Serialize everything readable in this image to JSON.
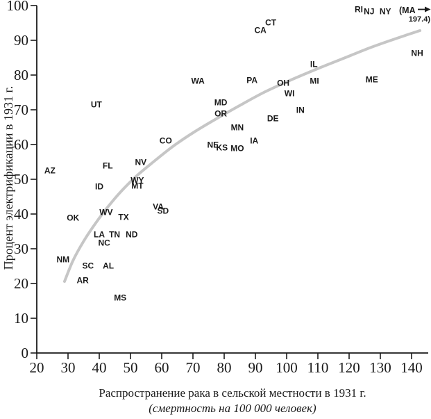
{
  "chart_data": {
    "type": "scatter",
    "title": "",
    "xlabel": "Распространение рака в сельской местности в 1931 г.",
    "xlabel_note": "(смертность на 100 000 человек)",
    "ylabel": "Процент электрификации в 1931 г.",
    "xlim": [
      20,
      145
    ],
    "ylim": [
      0,
      100
    ],
    "grid": false,
    "legend": "none",
    "point_marker": "state-abbreviation-text",
    "x_ticks": [
      20,
      30,
      40,
      50,
      60,
      70,
      80,
      90,
      100,
      110,
      120,
      130,
      140
    ],
    "y_ticks": [
      0,
      10,
      20,
      30,
      40,
      50,
      60,
      70,
      80,
      90,
      100
    ],
    "points": [
      {
        "label": "AZ",
        "x": 24.2,
        "y": 52.6
      },
      {
        "label": "NM",
        "x": 28.4,
        "y": 27.0
      },
      {
        "label": "OK",
        "x": 31.6,
        "y": 39.0
      },
      {
        "label": "AR",
        "x": 34.7,
        "y": 21.0
      },
      {
        "label": "SC",
        "x": 36.4,
        "y": 25.2
      },
      {
        "label": "UT",
        "x": 39.1,
        "y": 71.6
      },
      {
        "label": "ID",
        "x": 40.0,
        "y": 48.0
      },
      {
        "label": "LA",
        "x": 40.0,
        "y": 34.2
      },
      {
        "label": "NC",
        "x": 41.6,
        "y": 31.8
      },
      {
        "label": "WV",
        "x": 42.2,
        "y": 40.6
      },
      {
        "label": "FL",
        "x": 42.7,
        "y": 54.0
      },
      {
        "label": "AL",
        "x": 42.9,
        "y": 25.2
      },
      {
        "label": "TN",
        "x": 44.9,
        "y": 34.2
      },
      {
        "label": "MS",
        "x": 46.7,
        "y": 16.0
      },
      {
        "label": "TX",
        "x": 47.8,
        "y": 39.2
      },
      {
        "label": "ND",
        "x": 50.4,
        "y": 34.2
      },
      {
        "label": "WY",
        "x": 52.2,
        "y": 49.8
      },
      {
        "label": "MT",
        "x": 52.2,
        "y": 48.2
      },
      {
        "label": "NV",
        "x": 53.3,
        "y": 55.0
      },
      {
        "label": "VA",
        "x": 58.9,
        "y": 42.2
      },
      {
        "label": "SD",
        "x": 60.4,
        "y": 41.0
      },
      {
        "label": "CO",
        "x": 61.3,
        "y": 61.2
      },
      {
        "label": "WA",
        "x": 71.6,
        "y": 78.4
      },
      {
        "label": "NE",
        "x": 76.4,
        "y": 60.0
      },
      {
        "label": "OR",
        "x": 78.9,
        "y": 69.0
      },
      {
        "label": "MD",
        "x": 78.9,
        "y": 72.2
      },
      {
        "label": "KS",
        "x": 79.3,
        "y": 59.2
      },
      {
        "label": "MN",
        "x": 84.2,
        "y": 65.0
      },
      {
        "label": "MO",
        "x": 84.2,
        "y": 59.0
      },
      {
        "label": "PA",
        "x": 88.9,
        "y": 78.6
      },
      {
        "label": "IA",
        "x": 89.6,
        "y": 61.2
      },
      {
        "label": "CA",
        "x": 91.6,
        "y": 93.0
      },
      {
        "label": "CT",
        "x": 94.9,
        "y": 95.2
      },
      {
        "label": "DE",
        "x": 95.6,
        "y": 67.6
      },
      {
        "label": "OH",
        "x": 98.9,
        "y": 77.8
      },
      {
        "label": "WI",
        "x": 100.9,
        "y": 74.8
      },
      {
        "label": "IN",
        "x": 104.4,
        "y": 70.0
      },
      {
        "label": "IL",
        "x": 108.7,
        "y": 83.2
      },
      {
        "label": "MI",
        "x": 108.9,
        "y": 78.4
      },
      {
        "label": "RI",
        "x": 123.1,
        "y": 99.0
      },
      {
        "label": "NJ",
        "x": 126.4,
        "y": 98.4
      },
      {
        "label": "ME",
        "x": 127.3,
        "y": 78.8
      },
      {
        "label": "NY",
        "x": 131.6,
        "y": 98.4
      },
      {
        "label": "NH",
        "x": 141.8,
        "y": 86.4
      }
    ],
    "outlier": {
      "state": "MA",
      "x_value": 197.4,
      "note_text": "(MA",
      "note_value": "197.4)",
      "arrow_icon": "→"
    },
    "trend_curve": {
      "type": "log-fit",
      "color": "#c6c6c6",
      "points": [
        [
          28.9,
          20.6
        ],
        [
          31.6,
          26.6
        ],
        [
          34.9,
          32.0
        ],
        [
          38.7,
          37.2
        ],
        [
          42.7,
          42.0
        ],
        [
          47.1,
          46.6
        ],
        [
          52.0,
          51.0
        ],
        [
          57.6,
          55.2
        ],
        [
          63.8,
          59.6
        ],
        [
          70.4,
          63.6
        ],
        [
          77.1,
          67.2
        ],
        [
          84.9,
          71.2
        ],
        [
          92.7,
          75.0
        ],
        [
          100.4,
          78.2
        ],
        [
          109.3,
          81.6
        ],
        [
          118.2,
          84.8
        ],
        [
          127.1,
          88.0
        ],
        [
          136.0,
          90.8
        ],
        [
          142.7,
          92.8
        ]
      ]
    },
    "colors": {
      "text": "#1a1a1a",
      "axis": "#1a1a1a",
      "curve": "#c6c6c6",
      "background": "#ffffff"
    }
  }
}
